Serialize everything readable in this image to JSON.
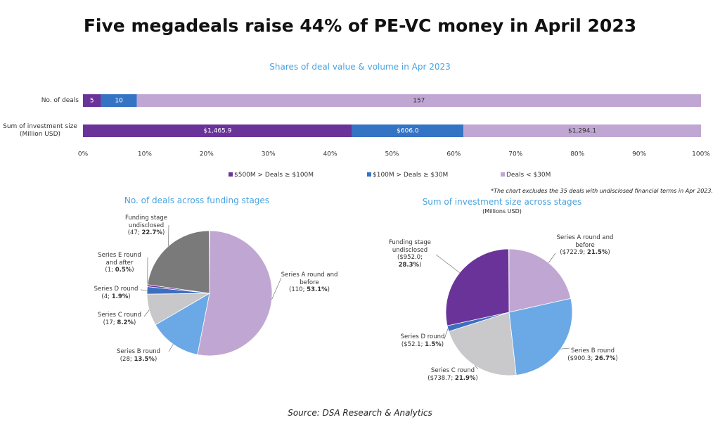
{
  "title": "Five megadeals raise 44% of PE-VC money in April 2023",
  "source": "Source: DSA Research & Analytics",
  "chart_data": [
    {
      "type": "stacked_bar_100",
      "title": "Shares of deal value & volume in Apr 2023",
      "categories": [
        "No. of deals",
        "Sum of investment size (Million USD)"
      ],
      "series": [
        {
          "name": "$500M > Deals ≥ $100M",
          "color": "#6a3399",
          "values": [
            5,
            1465.9
          ],
          "value_labels": [
            "5",
            "$1,465.9"
          ]
        },
        {
          "name": "$100M > Deals ≥ $30M",
          "color": "#3574c4",
          "values": [
            10,
            606.0
          ],
          "value_labels": [
            "10",
            "$606.0"
          ]
        },
        {
          "name": "Deals < $30M",
          "color": "#c0a7d3",
          "values": [
            157,
            1294.1
          ],
          "value_labels": [
            "157",
            "$1,294.1"
          ]
        }
      ],
      "xlim": [
        0,
        100
      ],
      "xticks": [
        {
          "value": 0,
          "label": "0%"
        },
        {
          "value": 10,
          "label": "10%"
        },
        {
          "value": 20,
          "label": "20%"
        },
        {
          "value": 30,
          "label": "30%"
        },
        {
          "value": 40,
          "label": "40%"
        },
        {
          "value": 50,
          "label": "50%"
        },
        {
          "value": 60,
          "label": "60%"
        },
        {
          "value": 70,
          "label": "70%"
        },
        {
          "value": 80,
          "label": "80%"
        },
        {
          "value": 90,
          "label": "90%"
        },
        {
          "value": 100,
          "label": "100%"
        }
      ],
      "legend": "bottom",
      "note": "*The chart excludes the 35 deals with undisclosed financial terms in Apr 2023."
    },
    {
      "type": "pie",
      "title": "No. of deals across funding stages",
      "categories": [
        "Series A round and before",
        "Series B round",
        "Series C round",
        "Series D round",
        "Series E round and after",
        "Funding stage undisclosed"
      ],
      "values": [
        110,
        28,
        17,
        4,
        1,
        47
      ],
      "shares": [
        {
          "value": 53.1,
          "label": "53.1%"
        },
        {
          "value": 13.5,
          "label": "13.5%"
        },
        {
          "value": 8.2,
          "label": "8.2%"
        },
        {
          "value": 1.9,
          "label": "1.9%"
        },
        {
          "value": 0.5,
          "label": "0.5%"
        },
        {
          "value": 22.7,
          "label": "22.7%"
        }
      ],
      "colors": [
        "#c0a7d3",
        "#6aa9e6",
        "#c8c8ca",
        "#3d6fbf",
        "#6a3399",
        "#7a7a7a"
      ]
    },
    {
      "type": "pie",
      "title": "Sum of investment size across stages",
      "subtitle": "(Millions USD)",
      "categories": [
        "Series A round and before",
        "Series B round",
        "Series C round",
        "Series D round",
        "Funding stage undisclosed"
      ],
      "values": [
        722.9,
        900.3,
        738.7,
        52.1,
        952.0
      ],
      "value_labels": [
        "$722.9",
        "$900.3",
        "$738.7",
        "$52.1",
        "$952.0"
      ],
      "shares": [
        {
          "value": 21.5,
          "label": "21.5%"
        },
        {
          "value": 26.7,
          "label": "26.7%"
        },
        {
          "value": 21.9,
          "label": "21.9%"
        },
        {
          "value": 1.5,
          "label": "1.5%"
        },
        {
          "value": 28.3,
          "label": "28.3%"
        }
      ],
      "colors": [
        "#c0a7d3",
        "#6aa9e6",
        "#c9c9cc",
        "#3d6fbf",
        "#6a3399"
      ]
    }
  ]
}
